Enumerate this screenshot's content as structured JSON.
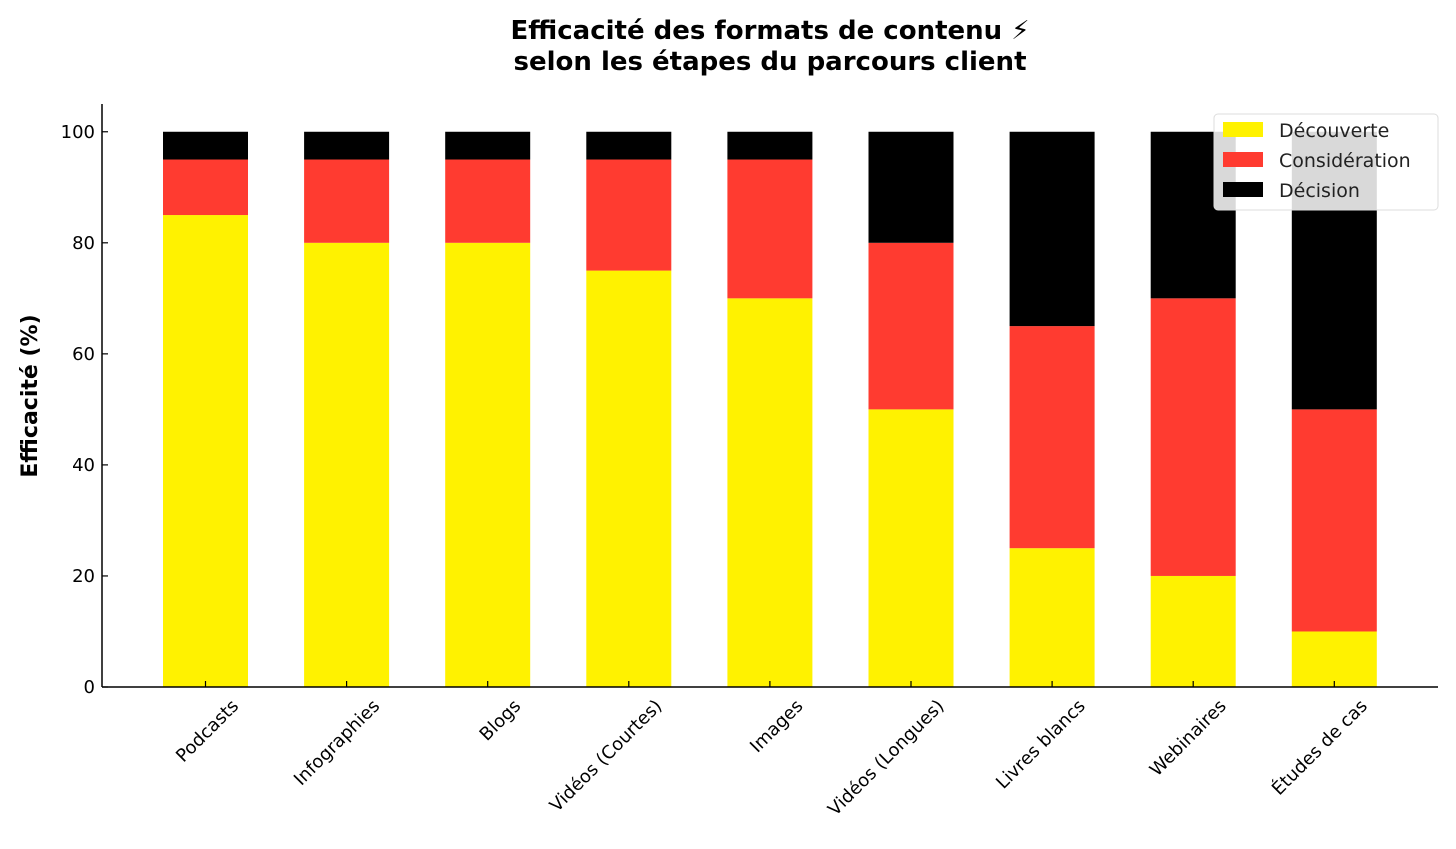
{
  "chart_data": {
    "type": "bar",
    "stacked": true,
    "title": "Efficacité des formats de contenu ⚡ selon les étapes du parcours client",
    "title_lines": [
      "Efficacité des formats de contenu ⚡",
      "selon les étapes du parcours client"
    ],
    "xlabel": "",
    "ylabel": "Efficacité (%)",
    "ylim": [
      0,
      105
    ],
    "yticks": [
      0,
      20,
      40,
      60,
      80,
      100
    ],
    "grid": false,
    "legend_position": "top-right",
    "categories": [
      "Podcasts",
      "Infographies",
      "Blogs",
      "Vidéos (Courtes)",
      "Images",
      "Vidéos (Longues)",
      "Livres blancs",
      "Webinaires",
      "Études de cas"
    ],
    "series": [
      {
        "name": "Découverte",
        "color": "#FFF200",
        "values": [
          85,
          80,
          80,
          75,
          70,
          50,
          25,
          20,
          10
        ]
      },
      {
        "name": "Considération",
        "color": "#FF3B30",
        "values": [
          10,
          15,
          15,
          20,
          25,
          30,
          40,
          50,
          40
        ]
      },
      {
        "name": "Décision",
        "color": "#000000",
        "values": [
          5,
          5,
          5,
          5,
          5,
          20,
          35,
          30,
          50
        ]
      }
    ]
  }
}
